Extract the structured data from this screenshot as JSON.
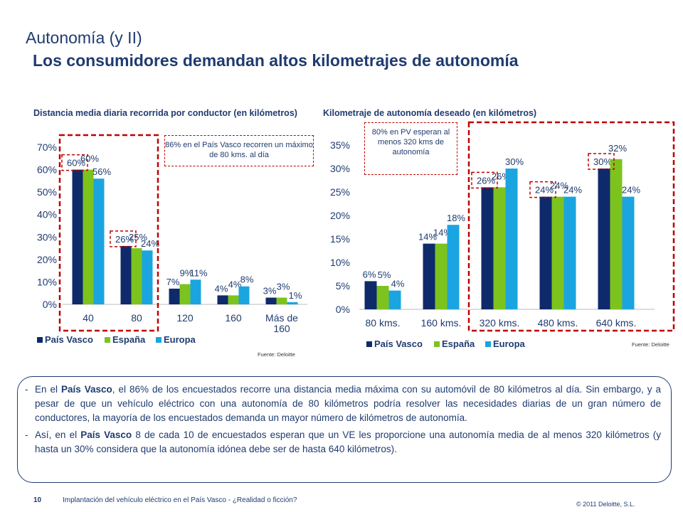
{
  "header": {
    "title": "Autonomía (y II)",
    "subtitle": "Los consumidores demandan altos kilometrajes de autonomía"
  },
  "colors": {
    "pais_vasco": "#0f2a6b",
    "espana": "#7dc31e",
    "europa": "#1ba5e0",
    "highlight": "#c00000",
    "text": "#1f3b70"
  },
  "chart_data": [
    {
      "type": "bar",
      "title": "Distancia media diaria recorrida por conductor (en kilómetros)",
      "categories": [
        "40",
        "80",
        "120",
        "160",
        "Más de 160"
      ],
      "series": [
        {
          "name": "País Vasco",
          "values": [
            60,
            26,
            7,
            4,
            3
          ]
        },
        {
          "name": "España",
          "values": [
            60,
            25,
            9,
            4,
            3
          ]
        },
        {
          "name": "Europa",
          "values": [
            56,
            24,
            11,
            8,
            1
          ]
        }
      ],
      "y_ticks": [
        "0%",
        "10%",
        "20%",
        "30%",
        "40%",
        "50%",
        "60%",
        "70%"
      ],
      "ylim": [
        0,
        70
      ],
      "legend": "bottom",
      "highlighted_labels": [
        "60%",
        "26%"
      ],
      "callout": "86% en el País Vasco recorren un máximo de 80 kms. al día",
      "source": "Fuente: Deloitte"
    },
    {
      "type": "bar",
      "title": "Kilometraje de autonomía deseado (en kilómetros)",
      "categories": [
        "80 kms.",
        "160 kms.",
        "320 kms.",
        "480 kms.",
        "640 kms."
      ],
      "series": [
        {
          "name": "País Vasco",
          "values": [
            6,
            14,
            26,
            24,
            30
          ]
        },
        {
          "name": "España",
          "values": [
            5,
            14,
            26,
            24,
            32
          ]
        },
        {
          "name": "Europa",
          "values": [
            4,
            18,
            30,
            24,
            24
          ]
        }
      ],
      "y_ticks": [
        "0%",
        "5%",
        "10%",
        "15%",
        "20%",
        "25%",
        "30%",
        "35%"
      ],
      "ylim": [
        0,
        35
      ],
      "legend": "bottom",
      "highlighted_labels": [
        "26%",
        "24%",
        "30%"
      ],
      "callout": "80% en PV esperan al menos 320 kms de autonomía",
      "source": "Fuente: Deloitte"
    }
  ],
  "paragraphs": [
    {
      "dash": "-",
      "pre": "En el ",
      "bold": "País Vasco",
      "post": ", el 86% de los encuestados recorre una distancia media máxima con su automóvil de 80 kilómetros al día. Sin embargo, y a pesar de que un vehículo eléctrico con una autonomía de 80 kilómetros podría resolver las necesidades diarias de un gran número de conductores, la mayoría de los encuestados demanda un mayor número de kilómetros de autonomía."
    },
    {
      "dash": "-",
      "pre": "Así, en el ",
      "bold": "País Vasco",
      "post": " 8 de cada 10 de encuestados esperan que un VE les proporcione una autonomía media de al menos 320 kilómetros (y hasta un 30% considera que la autonomía idónea debe ser de hasta 640 kilómetros)."
    }
  ],
  "footer": {
    "page_number": "10",
    "text": "Implantación del vehículo eléctrico en el País Vasco - ¿Realidad o ficción?",
    "copyright": "© 2011 Deloitte, S.L."
  }
}
